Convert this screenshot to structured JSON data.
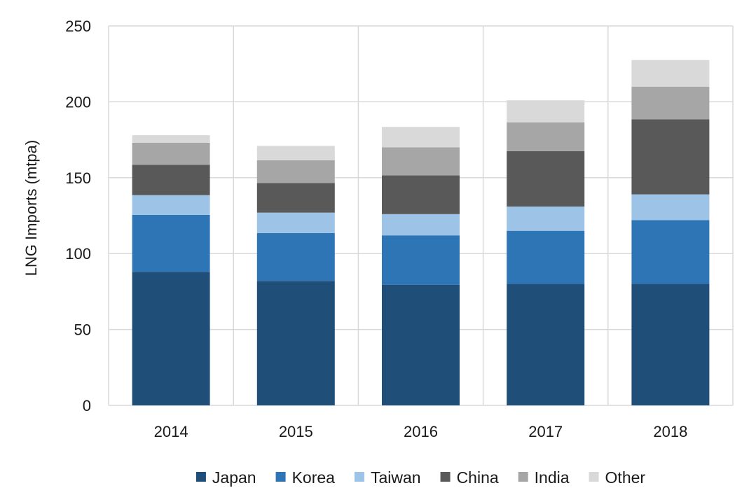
{
  "chart_data": {
    "type": "bar",
    "stacked": true,
    "title": "",
    "xlabel": "",
    "ylabel": "LNG Imports (mtpa)",
    "ylim": [
      0,
      250
    ],
    "yticks": [
      "0",
      "50",
      "100",
      "150",
      "200",
      "250"
    ],
    "categories": [
      "2014",
      "2015",
      "2016",
      "2017",
      "2018"
    ],
    "grid": "both",
    "legend_position": "bottom",
    "series": [
      {
        "name": "Japan",
        "color": "#1f4e79",
        "values": [
          88,
          82,
          79.5,
          80,
          80
        ]
      },
      {
        "name": "Korea",
        "color": "#2e75b6",
        "values": [
          37.5,
          31.5,
          32.5,
          35,
          42
        ]
      },
      {
        "name": "Taiwan",
        "color": "#9dc3e6",
        "values": [
          13,
          13.5,
          14,
          16,
          17
        ]
      },
      {
        "name": "China",
        "color": "#595959",
        "values": [
          20,
          19.5,
          25.5,
          36.5,
          49.5
        ]
      },
      {
        "name": "India",
        "color": "#a6a6a6",
        "values": [
          14.5,
          15,
          18.5,
          19,
          21.5
        ]
      },
      {
        "name": "Other",
        "color": "#d9d9d9",
        "values": [
          5,
          9.5,
          13.5,
          14.5,
          17.5
        ]
      }
    ]
  }
}
